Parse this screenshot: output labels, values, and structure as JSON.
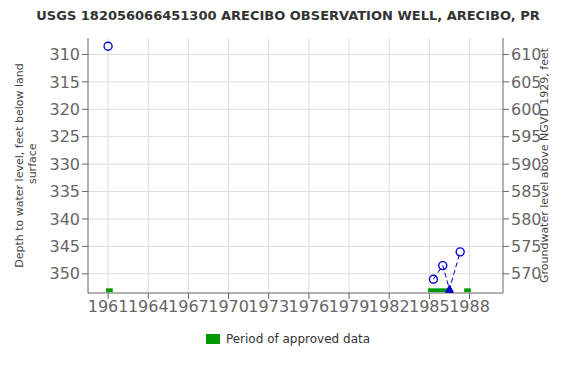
{
  "chart_data": {
    "type": "scatter",
    "title": "USGS 182056066451300 ARECIBO OBSERVATION WELL, ARECIBO, PR",
    "ylabel": "Depth to water level, feet below land\n surface",
    "y2label": "Groundwater level above NGVD 1929, feet",
    "xlim": [
      1959.5,
      1990.5
    ],
    "xticks": [
      1961,
      1964,
      1967,
      1970,
      1973,
      1976,
      1979,
      1982,
      1985,
      1988
    ],
    "ylim": [
      353.5,
      307.0
    ],
    "yticks": [
      310,
      315,
      320,
      325,
      330,
      335,
      340,
      345,
      350
    ],
    "y2lim": [
      566.5,
      613.0
    ],
    "y2ticks": [
      570,
      575,
      580,
      585,
      590,
      595,
      600,
      605,
      610
    ],
    "grid": true,
    "legend": "bottom",
    "series": [
      {
        "type": "scatter",
        "marker": "circle",
        "color": "#0000cc",
        "x": [
          1961.0,
          1985.3,
          1986.0,
          1987.3
        ],
        "values": [
          308.5,
          351.0,
          348.5,
          346.0
        ]
      },
      {
        "type": "scatter",
        "marker": "triangle",
        "color": "#0000cc",
        "x": [
          1986.5
        ],
        "values": [
          352.8
        ]
      },
      {
        "type": "line",
        "line_style": "dashed",
        "color": "#0000cc",
        "x": [
          1985.3,
          1986.0,
          1986.5,
          1987.3
        ],
        "values": [
          351.0,
          348.5,
          352.8,
          346.0
        ]
      }
    ],
    "periods": {
      "name": "Period of approved data",
      "color": "#009900",
      "y": 353.0,
      "height": 0.7,
      "ranges": [
        {
          "x_start": 1960.85,
          "x_end": 1961.35
        },
        {
          "x_start": 1984.9,
          "x_end": 1986.7
        },
        {
          "x_start": 1987.6,
          "x_end": 1988.1
        }
      ]
    }
  }
}
